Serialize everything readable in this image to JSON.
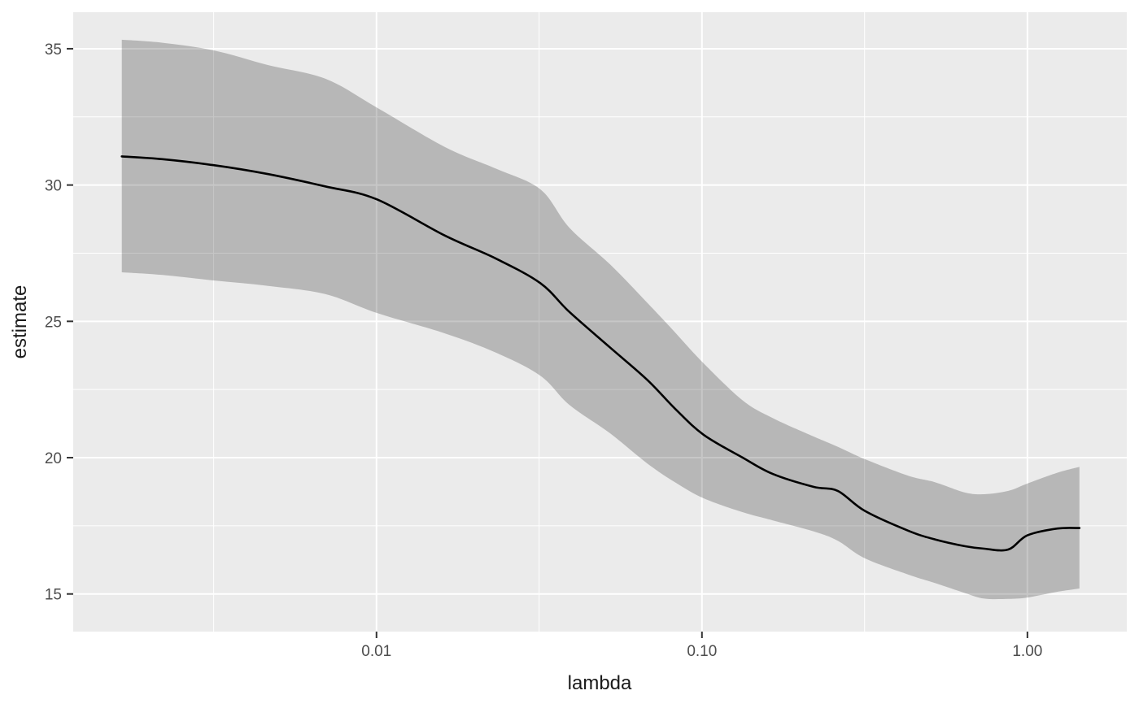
{
  "figure": {
    "description": "ggplot2-style smoothed line chart with grey confidence ribbon on log-scaled x axis",
    "x_axis_title": "lambda",
    "y_axis_title": "estimate"
  },
  "chart_data": {
    "type": "line",
    "title": "",
    "xlabel": "lambda",
    "ylabel": "estimate",
    "x_scale": "log10",
    "xlim": [
      0.00117,
      2.02
    ],
    "ylim": [
      13.62,
      36.34
    ],
    "grid": "white major and minor gridlines on grey panel",
    "legend_position": "none",
    "x_ticks": {
      "major_values": [
        0.01,
        0.1,
        1.0
      ],
      "major_labels": [
        "0.01",
        "0.10",
        "1.00"
      ],
      "minor_values": [
        0.00316,
        0.0316,
        0.316
      ]
    },
    "y_ticks": {
      "major_values": [
        15,
        20,
        25,
        30,
        35
      ],
      "major_labels": [
        "15",
        "20",
        "25",
        "30",
        "35"
      ],
      "minor_values": [
        17.5,
        22.5,
        27.5,
        32.5
      ]
    },
    "series": [
      {
        "name": "estimate",
        "type": "line",
        "x": [
          0.00165,
          0.0022,
          0.00316,
          0.00465,
          0.00696,
          0.01,
          0.0162,
          0.0233,
          0.0319,
          0.0391,
          0.0521,
          0.0677,
          0.0826,
          0.1012,
          0.1334,
          0.1651,
          0.22,
          0.2614,
          0.3162,
          0.4305,
          0.52,
          0.644,
          0.737,
          0.873,
          1.0,
          1.237,
          1.445
        ],
        "y": [
          31.05,
          30.95,
          30.73,
          30.4,
          29.95,
          29.48,
          28.15,
          27.3,
          26.4,
          25.35,
          24.05,
          22.87,
          21.8,
          20.84,
          20.0,
          19.4,
          18.93,
          18.78,
          18.05,
          17.32,
          17.0,
          16.75,
          16.66,
          16.63,
          17.15,
          17.4,
          17.42
        ]
      },
      {
        "name": "confidence ribbon",
        "type": "ribbon",
        "x": [
          0.00165,
          0.0022,
          0.00316,
          0.00465,
          0.00696,
          0.01,
          0.0162,
          0.0233,
          0.0319,
          0.0391,
          0.0521,
          0.0677,
          0.0826,
          0.1012,
          0.1334,
          0.1651,
          0.22,
          0.2614,
          0.3162,
          0.4305,
          0.52,
          0.644,
          0.737,
          0.873,
          1.0,
          1.237,
          1.445
        ],
        "lower": [
          26.8,
          26.7,
          26.5,
          26.3,
          26.0,
          25.31,
          24.56,
          23.85,
          23.0,
          21.94,
          20.9,
          19.8,
          19.1,
          18.51,
          18.0,
          17.7,
          17.3,
          16.95,
          16.31,
          15.71,
          15.4,
          15.03,
          14.83,
          14.82,
          14.87,
          15.08,
          15.2
        ],
        "upper": [
          35.33,
          35.22,
          34.94,
          34.4,
          33.9,
          32.85,
          31.4,
          30.6,
          29.84,
          28.44,
          27.1,
          25.7,
          24.6,
          23.46,
          22.1,
          21.45,
          20.78,
          20.4,
          19.95,
          19.34,
          19.1,
          18.72,
          18.66,
          18.78,
          19.05,
          19.45,
          19.66
        ]
      }
    ],
    "colors": {
      "panel_background": "#EBEBEB",
      "gridline": "#FFFFFF",
      "ribbon_fill": "#000000",
      "ribbon_opacity": 0.22,
      "line": "#000000",
      "tick_mark": "#333333",
      "tick_text": "#4D4D4D",
      "axis_title_text": "#1A1A1A"
    }
  }
}
